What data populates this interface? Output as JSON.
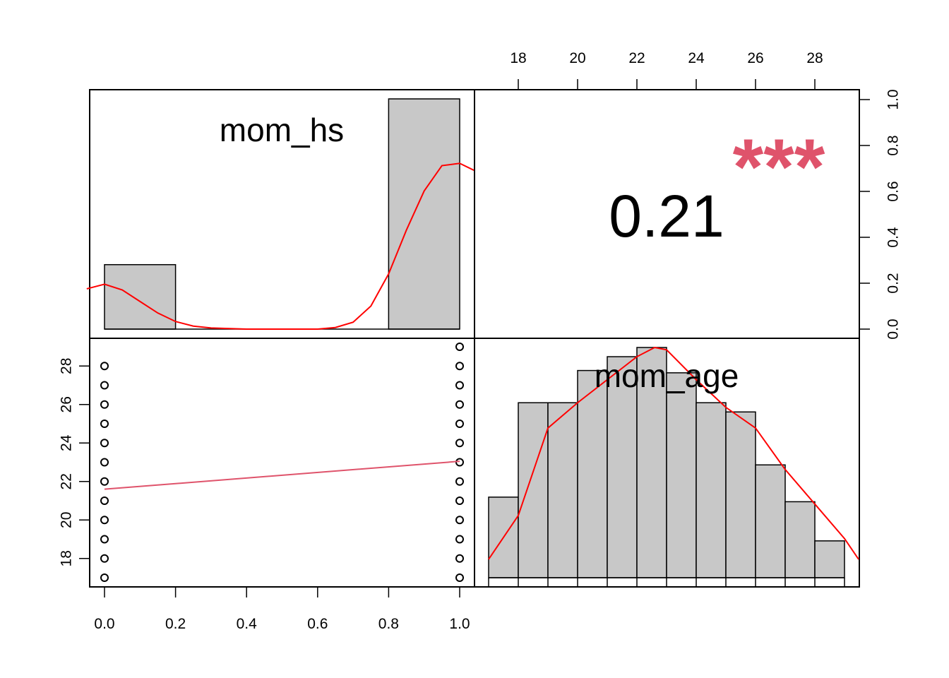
{
  "chart_data": {
    "type": "scatter",
    "title": "",
    "variables": [
      "mom_hs",
      "mom_age"
    ],
    "colors": {
      "red": "#FF0000",
      "pink": "#DF536B",
      "bar_fill": "#C8C8C8"
    },
    "bottom_axis": {
      "ticks": [
        "0.0",
        "0.2",
        "0.4",
        "0.6",
        "0.8",
        "1.0"
      ]
    },
    "left_axis": {
      "ticks": [
        "18",
        "20",
        "22",
        "24",
        "26",
        "28"
      ]
    },
    "top_axis": {
      "ticks": [
        "18",
        "20",
        "22",
        "24",
        "26",
        "28"
      ]
    },
    "right_axis": {
      "ticks": [
        "0.0",
        "0.2",
        "0.4",
        "0.6",
        "0.8",
        "1.0"
      ]
    },
    "correlation": {
      "value": "0.21",
      "stars": "***"
    },
    "hist_mom_hs": {
      "bins": [
        [
          0.0,
          0.2
        ],
        [
          0.8,
          1.0
        ]
      ],
      "heights": [
        0.28,
        1.0
      ]
    },
    "hist_mom_age": {
      "breaks": [
        17,
        18,
        19,
        20,
        21,
        22,
        23,
        24,
        25,
        26,
        27,
        28,
        29
      ],
      "heights": [
        0.35,
        0.76,
        0.76,
        0.9,
        0.96,
        1.0,
        0.89,
        0.76,
        0.72,
        0.49,
        0.33,
        0.16
      ]
    },
    "density_mom_hs": [
      [
        -0.05,
        0.175
      ],
      [
        0.0,
        0.195
      ],
      [
        0.05,
        0.17
      ],
      [
        0.1,
        0.12
      ],
      [
        0.15,
        0.07
      ],
      [
        0.2,
        0.033
      ],
      [
        0.25,
        0.013
      ],
      [
        0.3,
        0.005
      ],
      [
        0.4,
        0.0
      ],
      [
        0.5,
        0.0
      ],
      [
        0.6,
        0.0
      ],
      [
        0.65,
        0.007
      ],
      [
        0.7,
        0.03
      ],
      [
        0.75,
        0.1
      ],
      [
        0.8,
        0.24
      ],
      [
        0.85,
        0.43
      ],
      [
        0.9,
        0.6
      ],
      [
        0.95,
        0.71
      ],
      [
        1.0,
        0.72
      ],
      [
        1.04,
        0.69
      ]
    ],
    "density_mom_age": [
      [
        17.0,
        0.08
      ],
      [
        18.0,
        0.27
      ],
      [
        19.0,
        0.65
      ],
      [
        20.0,
        0.76
      ],
      [
        21.0,
        0.86
      ],
      [
        22.0,
        0.96
      ],
      [
        22.6,
        1.0
      ],
      [
        23.0,
        0.99
      ],
      [
        24.0,
        0.86
      ],
      [
        25.0,
        0.74
      ],
      [
        26.0,
        0.65
      ],
      [
        27.0,
        0.47
      ],
      [
        28.0,
        0.32
      ],
      [
        29.0,
        0.17
      ],
      [
        29.5,
        0.08
      ]
    ],
    "scatter_points": [
      [
        0,
        17
      ],
      [
        0,
        18
      ],
      [
        0,
        19
      ],
      [
        0,
        20
      ],
      [
        0,
        21
      ],
      [
        0,
        22
      ],
      [
        0,
        23
      ],
      [
        0,
        24
      ],
      [
        0,
        25
      ],
      [
        0,
        26
      ],
      [
        0,
        27
      ],
      [
        0,
        28
      ],
      [
        1,
        17
      ],
      [
        1,
        18
      ],
      [
        1,
        19
      ],
      [
        1,
        20
      ],
      [
        1,
        21
      ],
      [
        1,
        22
      ],
      [
        1,
        23
      ],
      [
        1,
        24
      ],
      [
        1,
        25
      ],
      [
        1,
        26
      ],
      [
        1,
        27
      ],
      [
        1,
        28
      ],
      [
        1,
        29
      ]
    ],
    "fit_line": {
      "x": [
        0,
        1
      ],
      "y": [
        21.6,
        23.05
      ]
    }
  }
}
